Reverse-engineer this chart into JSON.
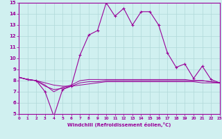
{
  "xlabel": "Windchill (Refroidissement éolien,°C)",
  "background_color": "#d0f0f0",
  "grid_color": "#b0d8d8",
  "line_color": "#990099",
  "hours": [
    0,
    1,
    2,
    3,
    4,
    5,
    6,
    7,
    8,
    9,
    10,
    11,
    12,
    13,
    14,
    15,
    16,
    17,
    18,
    19,
    20,
    21,
    22,
    23
  ],
  "windchill": [
    8.3,
    8.1,
    8.0,
    7.0,
    4.8,
    7.2,
    7.5,
    10.3,
    12.1,
    12.5,
    15.0,
    13.8,
    14.5,
    13.0,
    14.2,
    14.2,
    13.0,
    10.5,
    9.2,
    9.5,
    8.2,
    9.3,
    8.1,
    7.8
  ],
  "line2": [
    8.3,
    8.1,
    8.0,
    7.8,
    7.6,
    7.5,
    7.5,
    7.6,
    7.7,
    7.8,
    7.9,
    7.9,
    7.9,
    7.9,
    7.9,
    7.9,
    7.9,
    7.9,
    7.9,
    7.9,
    7.9,
    7.8,
    7.8,
    7.8
  ],
  "line3": [
    8.3,
    8.1,
    8.0,
    7.5,
    7.2,
    7.3,
    7.5,
    7.8,
    7.9,
    7.9,
    8.0,
    8.0,
    8.0,
    8.0,
    8.0,
    8.0,
    8.0,
    8.0,
    8.0,
    8.0,
    8.0,
    8.0,
    7.9,
    7.8
  ],
  "line4": [
    8.3,
    8.1,
    8.0,
    7.6,
    7.0,
    7.4,
    7.6,
    8.0,
    8.1,
    8.1,
    8.1,
    8.1,
    8.1,
    8.1,
    8.1,
    8.1,
    8.1,
    8.1,
    8.1,
    8.1,
    8.0,
    8.0,
    7.9,
    7.8
  ],
  "ylim": [
    5,
    15
  ],
  "xlim": [
    0,
    23
  ],
  "yticks": [
    5,
    6,
    7,
    8,
    9,
    10,
    11,
    12,
    13,
    14,
    15
  ],
  "xticks": [
    0,
    1,
    2,
    3,
    4,
    5,
    6,
    7,
    8,
    9,
    10,
    11,
    12,
    13,
    14,
    15,
    16,
    17,
    18,
    19,
    20,
    21,
    22,
    23
  ]
}
